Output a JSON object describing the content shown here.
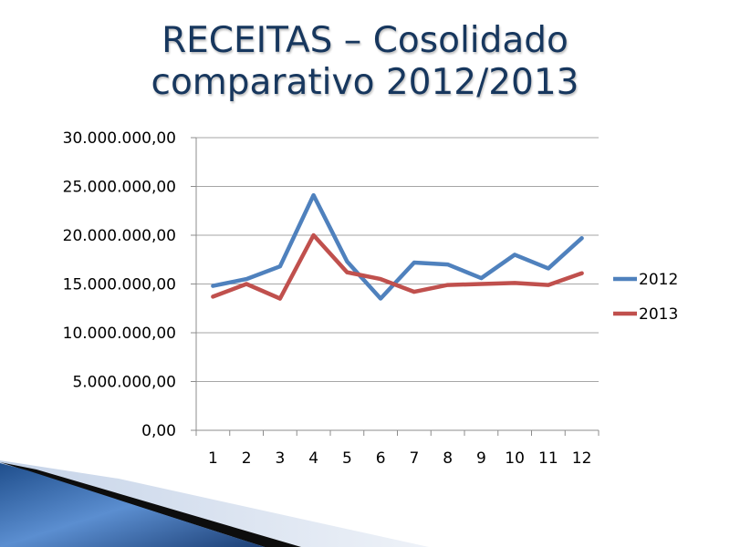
{
  "title": {
    "line1": "RECEITAS – Cosolidado",
    "line2": "comparativo 2012/2013"
  },
  "colors": {
    "series_2012": "#4f81bd",
    "series_2013": "#c0504d",
    "title": "#17375e",
    "gridline": "#a6a6a6"
  },
  "chart_data": {
    "type": "line",
    "categories": [
      "1",
      "2",
      "3",
      "4",
      "5",
      "6",
      "7",
      "8",
      "9",
      "10",
      "11",
      "12"
    ],
    "series": [
      {
        "name": "2012",
        "values": [
          14800000,
          15500000,
          16800000,
          24100000,
          17300000,
          13500000,
          17200000,
          17000000,
          15600000,
          18000000,
          16600000,
          19700000
        ]
      },
      {
        "name": "2013",
        "values": [
          13700000,
          15000000,
          13500000,
          20000000,
          16200000,
          15500000,
          14200000,
          14900000,
          15000000,
          15100000,
          14900000,
          16100000
        ]
      }
    ],
    "ylim": [
      0,
      30000000
    ],
    "yticks": [
      "0,00",
      "5.000.000,00",
      "10.000.000,00",
      "15.000.000,00",
      "20.000.000,00",
      "25.000.000,00",
      "30.000.000,00"
    ],
    "ytick_values": [
      0,
      5000000,
      10000000,
      15000000,
      20000000,
      25000000,
      30000000
    ],
    "grid": true,
    "legend": "right"
  }
}
